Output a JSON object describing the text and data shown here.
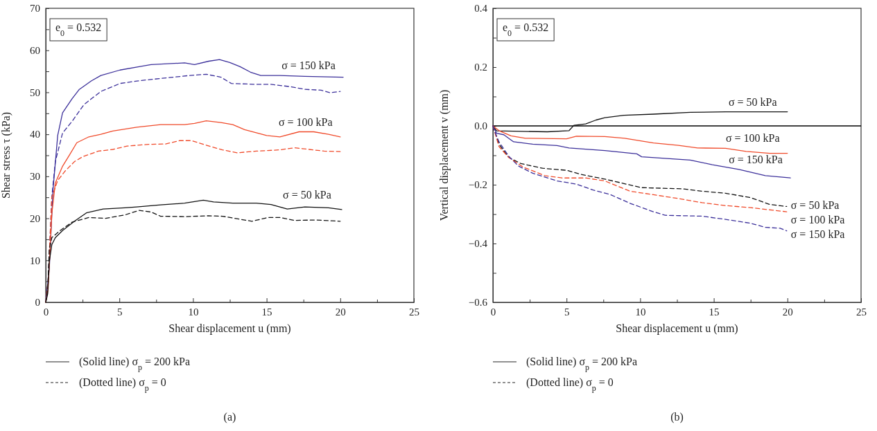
{
  "chart_data": [
    {
      "type": "line",
      "xlabel": "Shear displacement u (mm)",
      "ylabel": "Shear stress τ (kPa)",
      "xlim": [
        0,
        25
      ],
      "ylim": [
        0,
        70
      ],
      "xticks": [
        0,
        {
          "value": 2.5,
          "label": null
        },
        5,
        {
          "value": 7.5,
          "label": null
        },
        10,
        {
          "value": 12.5,
          "label": null
        },
        15,
        {
          "value": 17.5,
          "label": null
        },
        20,
        {
          "value": 22.5,
          "label": null
        },
        25
      ],
      "yticks": [
        0,
        {
          "value": 5,
          "label": null
        },
        10,
        {
          "value": 15,
          "label": null
        },
        20,
        {
          "value": 25,
          "label": null
        },
        30,
        {
          "value": 35,
          "label": null
        },
        40,
        {
          "value": 45,
          "label": null
        },
        50,
        {
          "value": 55,
          "label": null
        },
        60,
        {
          "value": 65,
          "label": null
        },
        70
      ],
      "annotations": [
        "e$_{0}$ = 0.532",
        "(Solid line) σ$_{p}$ = 200 kPa",
        "(Dotted line) σ$_{p}$ = 0",
        "(a)"
      ],
      "series": [
        {
          "name": "σ = 150 kPa",
          "color": "#3b2f9a",
          "line_style": "solid",
          "x": [
            0,
            0.24,
            0.49,
            0.81,
            1.14,
            1.79,
            2.28,
            3.09,
            3.74,
            5.04,
            6.34,
            7.15,
            9.43,
            10.1,
            11.06,
            11.8,
            12.5,
            13.2,
            13.9,
            14.6,
            15.9,
            17.6,
            20.2
          ],
          "values": [
            0,
            8,
            26.7,
            39.7,
            45.1,
            48.5,
            50.7,
            52.7,
            54,
            55.3,
            56.1,
            56.6,
            57,
            56.6,
            57.4,
            57.8,
            57.1,
            56.1,
            54.8,
            54,
            54,
            53.8,
            53.6
          ]
        },
        {
          "color": "#3b2f9a",
          "line_style": "dashed",
          "x": [
            0,
            0.16,
            0.41,
            0.65,
            1.14,
            1.79,
            2.6,
            3.74,
            5.04,
            6.2,
            7.8,
            9.76,
            10.9,
            11.9,
            12.6,
            14.3,
            15.3,
            16.7,
            17.6,
            18.7,
            19.3,
            20
          ],
          "values": [
            0,
            5,
            25,
            33.5,
            40.3,
            43.1,
            47.1,
            50.2,
            52.1,
            52.7,
            53.3,
            54,
            54.3,
            53.6,
            52.1,
            51.9,
            51.9,
            51.3,
            50.7,
            50.5,
            49.9,
            50.2
          ]
        },
        {
          "name": "σ = 100 kPa",
          "color": "#f04a2a",
          "line_style": "solid",
          "x": [
            0,
            0.16,
            0.41,
            0.65,
            1.14,
            1.63,
            2.11,
            2.93,
            3.74,
            4.55,
            6.18,
            7.8,
            9.43,
            10.1,
            10.9,
            11.9,
            12.7,
            13.5,
            15,
            15.9,
            17.2,
            18.2,
            19.2,
            20
          ],
          "values": [
            0,
            3,
            21,
            28.4,
            32.4,
            35.2,
            38,
            39.4,
            40,
            40.8,
            41.7,
            42.3,
            42.3,
            42.6,
            43.2,
            42.8,
            42.3,
            41.1,
            39.7,
            39.4,
            40.6,
            40.6,
            40,
            39.4
          ]
        },
        {
          "color": "#f04a2a",
          "line_style": "dashed",
          "x": [
            0,
            0.16,
            0.41,
            0.81,
            1.3,
            1.95,
            2.52,
            3.58,
            4.55,
            5.53,
            7,
            8.13,
            9.1,
            9.9,
            11.1,
            12,
            13,
            14.3,
            15.9,
            16.9,
            17.9,
            18.9,
            20
          ],
          "values": [
            0,
            5,
            25,
            29,
            31.2,
            33.5,
            34.7,
            36,
            36.4,
            37.2,
            37.6,
            37.7,
            38.5,
            38.5,
            37.2,
            36.3,
            35.6,
            36,
            36.3,
            36.8,
            36.4,
            36,
            35.9
          ]
        },
        {
          "name": "σ = 50 kPa",
          "color": "#111111",
          "line_style": "solid",
          "x": [
            0,
            0.13,
            0.24,
            0.41,
            0.65,
            1.14,
            1.95,
            2.76,
            3.9,
            5.37,
            6.18,
            7.8,
            9.43,
            10.7,
            11.4,
            12.7,
            14.3,
            15.3,
            16.4,
            17.6,
            19.2,
            20.1
          ],
          "values": [
            0,
            2,
            9.7,
            13.7,
            15.4,
            17.1,
            19.3,
            21.3,
            22.2,
            22.5,
            22.7,
            23.2,
            23.6,
            24.3,
            23.9,
            23.6,
            23.6,
            23.3,
            22.2,
            22.7,
            22.5,
            22.1
          ]
        },
        {
          "color": "#111111",
          "line_style": "dashed",
          "x": [
            0,
            0.13,
            0.24,
            0.41,
            0.98,
            1.79,
            2.93,
            4.07,
            5.37,
            6.34,
            7.15,
            7.8,
            9.43,
            11.06,
            12,
            14,
            15.1,
            15.9,
            16.9,
            18.4,
            20
          ],
          "values": [
            0,
            3,
            12.6,
            15.4,
            17.1,
            19.1,
            20.2,
            20,
            20.8,
            21.9,
            21.5,
            20.5,
            20.4,
            20.6,
            20.5,
            19.3,
            20.2,
            20.2,
            19.5,
            19.6,
            19.3
          ]
        }
      ]
    },
    {
      "type": "line",
      "xlabel": "Shear displacement u (mm)",
      "ylabel": "Vertical displacement v (mm)",
      "xlim": [
        0,
        25
      ],
      "ylim": [
        -0.6,
        0.4
      ],
      "xticks": [
        0,
        {
          "value": 2.5,
          "label": null
        },
        5,
        {
          "value": 7.5,
          "label": null
        },
        10,
        {
          "value": 12.5,
          "label": null
        },
        15,
        {
          "value": 17.5,
          "label": null
        },
        20,
        {
          "value": 22.5,
          "label": null
        },
        25
      ],
      "yticks": [
        {
          "value": -0.6,
          "label": "−0.6"
        },
        {
          "value": -0.5,
          "label": null
        },
        {
          "value": -0.4,
          "label": "−0.4"
        },
        {
          "value": -0.3,
          "label": null
        },
        {
          "value": -0.2,
          "label": "−0.2"
        },
        {
          "value": -0.1,
          "label": null
        },
        {
          "value": 0,
          "label": "0.0"
        },
        {
          "value": 0.1,
          "label": null
        },
        {
          "value": 0.2,
          "label": "0.2"
        },
        {
          "value": 0.3,
          "label": null
        },
        {
          "value": 0.4,
          "label": "0.4"
        }
      ],
      "ref_lines": [
        {
          "axis": "y",
          "value": 0,
          "color": "#000000"
        }
      ],
      "annotations": [
        "e$_{0}$ = 0.532",
        "(Solid line) σ$_{p}$ = 200 kPa",
        "(Dotted line) σ$_{p}$ = 0",
        "(b)"
      ],
      "series": [
        {
          "name": "σ = 50 kPa",
          "color": "#111111",
          "line_style": "solid",
          "x": [
            0,
            0.25,
            3.7,
            5.17,
            5.5,
            6.3,
            7,
            7.6,
            8.9,
            10.9,
            13.4,
            15.8,
            20
          ],
          "values": [
            0,
            -0.017,
            -0.02,
            -0.016,
            0.002,
            0.007,
            0.02,
            0.028,
            0.036,
            0.04,
            0.046,
            0.048,
            0.048
          ]
        },
        {
          "name": "σ = 100 kPa",
          "color": "#f04a2a",
          "line_style": "solid",
          "x": [
            0,
            0.41,
            1.23,
            2.2,
            5,
            5.67,
            7.6,
            8.95,
            10.9,
            12.6,
            13.9,
            15.8,
            17.2,
            18.8,
            20
          ],
          "values": [
            0,
            -0.016,
            -0.034,
            -0.042,
            -0.044,
            -0.035,
            -0.036,
            -0.042,
            -0.058,
            -0.066,
            -0.075,
            -0.076,
            -0.087,
            -0.093,
            -0.093
          ]
        },
        {
          "name": "σ = 150 kPa",
          "color": "#3b2f9a",
          "line_style": "solid",
          "x": [
            0,
            0.25,
            0.74,
            1.4,
            2.7,
            4.35,
            5.17,
            7.6,
            9.77,
            10.1,
            13.4,
            14.9,
            16.7,
            18.5,
            20.2
          ],
          "values": [
            0,
            -0.025,
            -0.03,
            -0.054,
            -0.062,
            -0.067,
            -0.075,
            -0.084,
            -0.095,
            -0.105,
            -0.116,
            -0.132,
            -0.148,
            -0.169,
            -0.177
          ]
        },
        {
          "name": "σ = 50 kPa",
          "color": "#111111",
          "line_style": "dashed",
          "x": [
            0,
            0.08,
            0.41,
            1.07,
            1.9,
            3.37,
            5,
            6,
            7.6,
            10.1,
            12.9,
            14.2,
            15.8,
            17.5,
            18.8,
            19.95
          ],
          "values": [
            0,
            -0.013,
            -0.062,
            -0.107,
            -0.128,
            -0.144,
            -0.151,
            -0.165,
            -0.181,
            -0.21,
            -0.214,
            -0.222,
            -0.229,
            -0.244,
            -0.267,
            -0.274
          ]
        },
        {
          "name": "σ = 100 kPa",
          "color": "#f04a2a",
          "line_style": "dashed",
          "x": [
            0,
            0.08,
            0.41,
            1.07,
            2.05,
            3.53,
            4.68,
            6.3,
            7.6,
            9.3,
            10.9,
            12.6,
            14.2,
            15.8,
            17.5,
            19.95
          ],
          "values": [
            0,
            -0.013,
            -0.07,
            -0.107,
            -0.14,
            -0.169,
            -0.177,
            -0.177,
            -0.187,
            -0.222,
            -0.234,
            -0.247,
            -0.261,
            -0.271,
            -0.278,
            -0.292
          ]
        },
        {
          "name": "σ = 150 kPa",
          "color": "#3b2f9a",
          "line_style": "dashed",
          "x": [
            0,
            0.08,
            0.41,
            1.07,
            1.72,
            2.7,
            4.35,
            5.67,
            6.8,
            8,
            9.3,
            10.9,
            11.7,
            14.2,
            15.8,
            17.5,
            18.5,
            19.5,
            19.95
          ],
          "values": [
            0,
            -0.013,
            -0.054,
            -0.103,
            -0.136,
            -0.161,
            -0.187,
            -0.198,
            -0.218,
            -0.234,
            -0.263,
            -0.292,
            -0.304,
            -0.307,
            -0.318,
            -0.331,
            -0.345,
            -0.348,
            -0.357
          ]
        }
      ]
    }
  ]
}
